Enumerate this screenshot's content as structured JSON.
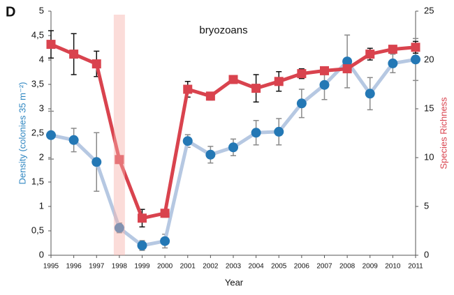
{
  "chart_data": {
    "type": "line",
    "panel_label": "D",
    "annotation": "bryozoans",
    "x_label": "Year",
    "y_label": "Density (colonies 35 m⁻²)",
    "y2_label": "Species Richness",
    "y_label_color": "#2e86c1",
    "y2_label_color": "#d9434e",
    "x": [
      1995,
      1996,
      1997,
      1998,
      1999,
      2000,
      2001,
      2002,
      2003,
      2004,
      2005,
      2006,
      2007,
      2008,
      2009,
      2010,
      2011
    ],
    "xlim": [
      1995,
      2011
    ],
    "xticks": [
      1995,
      1996,
      1997,
      1998,
      1999,
      2000,
      2001,
      2002,
      2003,
      2004,
      2005,
      2006,
      2007,
      2008,
      2009,
      2010,
      2011
    ],
    "ylim": [
      0,
      5
    ],
    "yticks": [
      0,
      {
        "value": 0.5,
        "label": "0,5"
      },
      1,
      {
        "value": 1.5,
        "label": "1,5"
      },
      2,
      {
        "value": 2.5,
        "label": "2,5"
      },
      3,
      {
        "value": 3.5,
        "label": "3,5"
      },
      4,
      {
        "value": 4.5,
        "label": "4,5"
      },
      5
    ],
    "y2lim": [
      0,
      25
    ],
    "y2ticks": [
      0,
      5,
      10,
      15,
      20,
      25
    ],
    "highlight": {
      "x": 1998,
      "color": "#f6b2aa"
    },
    "series": [
      {
        "line_color": "#b6c8e2",
        "marker_color": "#2478b5",
        "error_color": "#8a8a8a",
        "marker": "circle",
        "values": [
          2.46,
          2.36,
          1.91,
          0.56,
          0.2,
          0.29,
          2.34,
          2.06,
          2.21,
          2.51,
          2.53,
          3.11,
          3.49,
          3.97,
          3.31,
          3.93,
          4.01
        ],
        "errors": [
          0.49,
          0.24,
          0.6,
          0.1,
          0.1,
          0.14,
          0.13,
          0.17,
          0.17,
          0.25,
          0.27,
          0.29,
          0.3,
          0.54,
          0.33,
          0.19,
          0.43
        ]
      },
      {
        "axis": "y2",
        "line_color": "#d9434e",
        "marker_color": "#d9434e",
        "error_color": "#111111",
        "marker": "square",
        "values": [
          21.6,
          20.6,
          19.6,
          9.8,
          3.8,
          4.3,
          17,
          16.3,
          18,
          17.1,
          17.8,
          18.6,
          18.9,
          19.1,
          20.6,
          21.1,
          21.3
        ],
        "errors": [
          1.4,
          2.1,
          1.3,
          null,
          0.9,
          0.4,
          0.8,
          0.4,
          0.3,
          1.4,
          1,
          0.5,
          0.3,
          0.3,
          0.6,
          0.3,
          0.6
        ]
      }
    ]
  }
}
